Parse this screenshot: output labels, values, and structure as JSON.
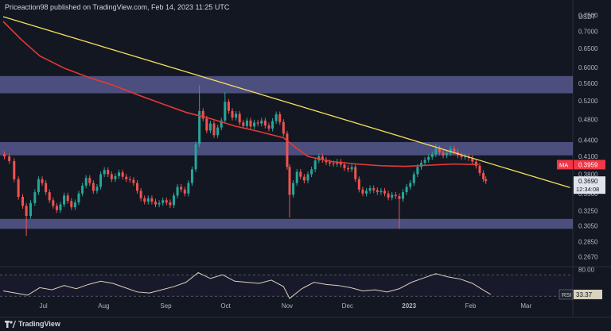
{
  "header": {
    "publisher_line": "Priceaction98 published on TradingView.com, Feb 14, 2023 11:25 UTC"
  },
  "footer": {
    "brand": "TradingView"
  },
  "colors": {
    "background": "#131722",
    "candle_up": "#26a69a",
    "candle_down": "#ef5350",
    "ma_line": "#e53935",
    "trendline": "#f5e05a",
    "zone_fill": "#7c7cc8",
    "rsi_line": "#d8d2bf",
    "axis_text": "#b2b5be",
    "price_tag": "#e0e3eb",
    "ma_tag": "#f23645"
  },
  "chart_data": [
    {
      "type": "candlestick",
      "title": "",
      "xlabel": "",
      "ylabel": "",
      "y_axis_unit": "USDT",
      "y_scale": "log",
      "ylim": [
        0.256,
        0.8
      ],
      "y_ticks": [
        "0.7500",
        "0.7000",
        "0.6500",
        "0.6000",
        "0.5600",
        "0.5200",
        "0.4800",
        "0.4400",
        "0.4100",
        "0.3800",
        "0.3500",
        "0.3250",
        "0.3050",
        "0.2850",
        "0.2670"
      ],
      "x_ticks": [
        "Jul",
        "Aug",
        "Sep",
        "Oct",
        "Nov",
        "Dec",
        "2023",
        "Feb",
        "Mar"
      ],
      "x_tick_months": [
        0.66,
        1.65,
        2.67,
        3.65,
        4.66,
        5.65,
        6.66,
        7.67,
        8.58
      ],
      "price_labels": {
        "last_price": "0.3690",
        "countdown": "12:34:08",
        "ma_label": "MA",
        "ma_value": "0.3959"
      },
      "zones": [
        {
          "low": 0.537,
          "high": 0.578
        },
        {
          "low": 0.412,
          "high": 0.436
        },
        {
          "low": 0.301,
          "high": 0.314
        }
      ],
      "trendline": {
        "start": {
          "month": 0.0,
          "price": 0.745
        },
        "end": {
          "month": 9.3,
          "price": 0.359
        }
      },
      "series": [
        {
          "name": "Price",
          "closes": [
            [
              0.02,
              0.41
            ],
            [
              0.1,
              0.402
            ],
            [
              0.18,
              0.372
            ],
            [
              0.25,
              0.345
            ],
            [
              0.32,
              0.332
            ],
            [
              0.38,
              0.318
            ],
            [
              0.45,
              0.336
            ],
            [
              0.52,
              0.352
            ],
            [
              0.58,
              0.372
            ],
            [
              0.64,
              0.366
            ],
            [
              0.7,
              0.352
            ],
            [
              0.76,
              0.34
            ],
            [
              0.82,
              0.332
            ],
            [
              0.88,
              0.326
            ],
            [
              0.94,
              0.334
            ],
            [
              1.0,
              0.347
            ],
            [
              1.06,
              0.339
            ],
            [
              1.12,
              0.33
            ],
            [
              1.18,
              0.337
            ],
            [
              1.24,
              0.35
            ],
            [
              1.3,
              0.362
            ],
            [
              1.36,
              0.374
            ],
            [
              1.42,
              0.366
            ],
            [
              1.48,
              0.354
            ],
            [
              1.54,
              0.36
            ],
            [
              1.6,
              0.38
            ],
            [
              1.66,
              0.387
            ],
            [
              1.72,
              0.38
            ],
            [
              1.78,
              0.372
            ],
            [
              1.84,
              0.377
            ],
            [
              1.9,
              0.383
            ],
            [
              1.96,
              0.376
            ],
            [
              2.02,
              0.372
            ],
            [
              2.08,
              0.371
            ],
            [
              2.14,
              0.366
            ],
            [
              2.2,
              0.354
            ],
            [
              2.26,
              0.343
            ],
            [
              2.32,
              0.338
            ],
            [
              2.38,
              0.343
            ],
            [
              2.44,
              0.338
            ],
            [
              2.5,
              0.334
            ],
            [
              2.56,
              0.336
            ],
            [
              2.62,
              0.34
            ],
            [
              2.68,
              0.337
            ],
            [
              2.74,
              0.333
            ],
            [
              2.8,
              0.347
            ],
            [
              2.86,
              0.36
            ],
            [
              2.92,
              0.356
            ],
            [
              2.98,
              0.35
            ],
            [
              3.04,
              0.366
            ],
            [
              3.1,
              0.388
            ],
            [
              3.16,
              0.432
            ],
            [
              3.22,
              0.498
            ],
            [
              3.28,
              0.482
            ],
            [
              3.34,
              0.458
            ],
            [
              3.4,
              0.472
            ],
            [
              3.46,
              0.449
            ],
            [
              3.52,
              0.464
            ],
            [
              3.58,
              0.478
            ],
            [
              3.64,
              0.518
            ],
            [
              3.7,
              0.498
            ],
            [
              3.76,
              0.484
            ],
            [
              3.82,
              0.492
            ],
            [
              3.88,
              0.474
            ],
            [
              3.94,
              0.467
            ],
            [
              4.0,
              0.478
            ],
            [
              4.06,
              0.466
            ],
            [
              4.12,
              0.474
            ],
            [
              4.18,
              0.472
            ],
            [
              4.24,
              0.478
            ],
            [
              4.3,
              0.468
            ],
            [
              4.36,
              0.462
            ],
            [
              4.42,
              0.477
            ],
            [
              4.48,
              0.491
            ],
            [
              4.54,
              0.475
            ],
            [
              4.6,
              0.452
            ],
            [
              4.66,
              0.392
            ],
            [
              4.7,
              0.348
            ],
            [
              4.76,
              0.366
            ],
            [
              4.82,
              0.384
            ],
            [
              4.88,
              0.376
            ],
            [
              4.94,
              0.37
            ],
            [
              5.0,
              0.38
            ],
            [
              5.06,
              0.388
            ],
            [
              5.12,
              0.403
            ],
            [
              5.18,
              0.41
            ],
            [
              5.24,
              0.404
            ],
            [
              5.3,
              0.4
            ],
            [
              5.36,
              0.398
            ],
            [
              5.42,
              0.397
            ],
            [
              5.48,
              0.401
            ],
            [
              5.54,
              0.396
            ],
            [
              5.6,
              0.39
            ],
            [
              5.66,
              0.388
            ],
            [
              5.72,
              0.392
            ],
            [
              5.78,
              0.372
            ],
            [
              5.84,
              0.356
            ],
            [
              5.9,
              0.35
            ],
            [
              5.96,
              0.354
            ],
            [
              6.02,
              0.358
            ],
            [
              6.08,
              0.355
            ],
            [
              6.14,
              0.352
            ],
            [
              6.2,
              0.354
            ],
            [
              6.26,
              0.35
            ],
            [
              6.32,
              0.344
            ],
            [
              6.38,
              0.348
            ],
            [
              6.44,
              0.346
            ],
            [
              6.5,
              0.342
            ],
            [
              6.56,
              0.352
            ],
            [
              6.62,
              0.36
            ],
            [
              6.68,
              0.366
            ],
            [
              6.74,
              0.38
            ],
            [
              6.8,
              0.392
            ],
            [
              6.86,
              0.399
            ],
            [
              6.92,
              0.404
            ],
            [
              6.98,
              0.409
            ],
            [
              7.04,
              0.414
            ],
            [
              7.1,
              0.424
            ],
            [
              7.16,
              0.417
            ],
            [
              7.22,
              0.412
            ],
            [
              7.28,
              0.416
            ],
            [
              7.34,
              0.424
            ],
            [
              7.4,
              0.418
            ],
            [
              7.46,
              0.412
            ],
            [
              7.52,
              0.409
            ],
            [
              7.58,
              0.41
            ],
            [
              7.64,
              0.407
            ],
            [
              7.7,
              0.401
            ],
            [
              7.76,
              0.394
            ],
            [
              7.82,
              0.382
            ],
            [
              7.88,
              0.372
            ],
            [
              7.92,
              0.369
            ]
          ],
          "wick_extremes": [
            {
              "month": 0.38,
              "low": 0.292
            },
            {
              "month": 4.7,
              "low": 0.316
            },
            {
              "month": 6.5,
              "low": 0.301
            },
            {
              "month": 3.22,
              "high": 0.556
            },
            {
              "month": 3.64,
              "high": 0.54
            },
            {
              "month": 7.1,
              "high": 0.432
            }
          ]
        },
        {
          "name": "MA",
          "points": [
            [
              0.0,
              0.73
            ],
            [
              0.3,
              0.675
            ],
            [
              0.6,
              0.63
            ],
            [
              1.0,
              0.598
            ],
            [
              1.4,
              0.575
            ],
            [
              1.8,
              0.556
            ],
            [
              2.2,
              0.534
            ],
            [
              2.6,
              0.514
            ],
            [
              3.0,
              0.495
            ],
            [
              3.4,
              0.482
            ],
            [
              3.8,
              0.467
            ],
            [
              4.2,
              0.456
            ],
            [
              4.6,
              0.444
            ],
            [
              4.8,
              0.426
            ],
            [
              5.0,
              0.41
            ],
            [
              5.4,
              0.401
            ],
            [
              5.8,
              0.397
            ],
            [
              6.2,
              0.394
            ],
            [
              6.6,
              0.393
            ],
            [
              7.0,
              0.395
            ],
            [
              7.4,
              0.397
            ],
            [
              7.8,
              0.396
            ]
          ]
        }
      ]
    },
    {
      "type": "line",
      "title": "",
      "xlabel": "",
      "ylabel": "",
      "indicator_label": "RSI",
      "indicator_value": "33.37",
      "y_ticks": [
        "80.00"
      ],
      "ylim": [
        20,
        85
      ],
      "bands": [
        70,
        30
      ],
      "series": [
        {
          "name": "RSI",
          "points": [
            [
              0.0,
              40
            ],
            [
              0.2,
              36
            ],
            [
              0.4,
              32
            ],
            [
              0.6,
              46
            ],
            [
              0.8,
              42
            ],
            [
              1.0,
              50
            ],
            [
              1.2,
              44
            ],
            [
              1.4,
              52
            ],
            [
              1.6,
              58
            ],
            [
              1.8,
              54
            ],
            [
              2.0,
              46
            ],
            [
              2.2,
              38
            ],
            [
              2.4,
              36
            ],
            [
              2.6,
              42
            ],
            [
              2.8,
              48
            ],
            [
              3.0,
              56
            ],
            [
              3.2,
              74
            ],
            [
              3.4,
              63
            ],
            [
              3.6,
              70
            ],
            [
              3.8,
              58
            ],
            [
              4.0,
              56
            ],
            [
              4.2,
              54
            ],
            [
              4.4,
              60
            ],
            [
              4.6,
              48
            ],
            [
              4.7,
              26
            ],
            [
              4.9,
              44
            ],
            [
              5.1,
              56
            ],
            [
              5.3,
              52
            ],
            [
              5.5,
              50
            ],
            [
              5.7,
              46
            ],
            [
              5.9,
              40
            ],
            [
              6.1,
              42
            ],
            [
              6.3,
              38
            ],
            [
              6.5,
              44
            ],
            [
              6.7,
              56
            ],
            [
              6.9,
              64
            ],
            [
              7.1,
              72
            ],
            [
              7.3,
              66
            ],
            [
              7.5,
              62
            ],
            [
              7.7,
              54
            ],
            [
              7.9,
              40
            ],
            [
              8.0,
              33.37
            ]
          ]
        }
      ]
    }
  ]
}
